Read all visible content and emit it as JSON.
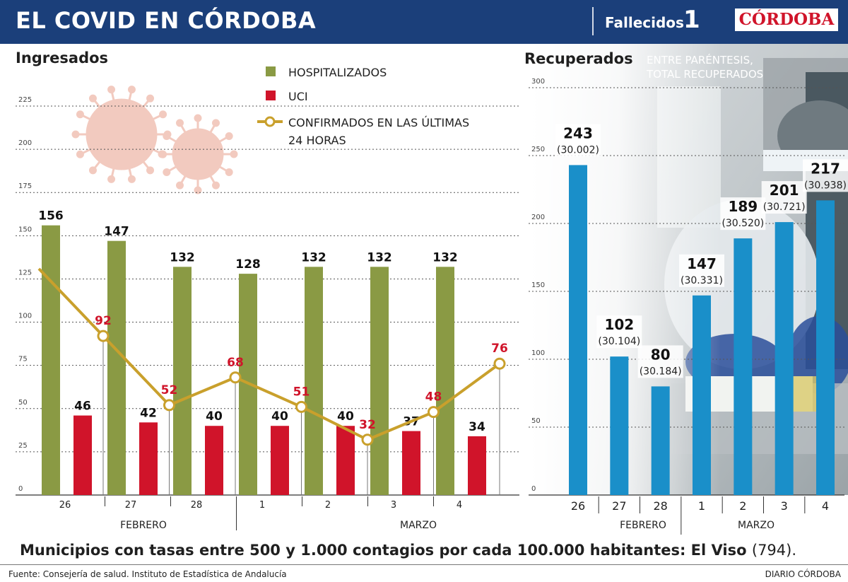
{
  "header": {
    "title": "EL COVID EN CÓRDOBA",
    "fallecidos_label": "Fallecidos",
    "fallecidos_value": "1",
    "logo": "CÓRDOBA"
  },
  "colors": {
    "header_bg": "#1b3f7a",
    "hospitalizados": "#8a9a44",
    "uci": "#d0142a",
    "confirmados": "#c9a02c",
    "recuperados": "#1a8fc9"
  },
  "chart_data": [
    {
      "type": "bar",
      "title": "Ingresados",
      "categories": [
        "26",
        "27",
        "28",
        "1",
        "2",
        "3",
        "4"
      ],
      "groups": [
        {
          "label": "FEBRERO",
          "categories": [
            "26",
            "27",
            "28"
          ]
        },
        {
          "label": "MARZO",
          "categories": [
            "1",
            "2",
            "3",
            "4"
          ]
        }
      ],
      "ylim": [
        0,
        225
      ],
      "yticks": [
        0,
        25,
        50,
        75,
        100,
        125,
        150,
        175,
        200,
        225
      ],
      "grid": true,
      "legend_placement": "top-center",
      "series": [
        {
          "name": "HOSPITALIZADOS",
          "type": "bar",
          "values": [
            156,
            147,
            132,
            128,
            132,
            132,
            132
          ]
        },
        {
          "name": "UCI",
          "type": "bar",
          "values": [
            46,
            42,
            40,
            40,
            40,
            37,
            34
          ]
        },
        {
          "name": "CONFIRMADOS EN LAS ÚLTIMAS 24 HORAS",
          "type": "line",
          "values": [
            92,
            52,
            68,
            51,
            32,
            48,
            76
          ]
        }
      ]
    },
    {
      "type": "bar",
      "title": "Recuperados",
      "subtitle": "ENTRE PARÉNTESIS, TOTAL RECUPERADOS",
      "categories": [
        "26",
        "27",
        "28",
        "1",
        "2",
        "3",
        "4"
      ],
      "groups": [
        {
          "label": "FEBRERO",
          "categories": [
            "26",
            "27",
            "28"
          ]
        },
        {
          "label": "MARZO",
          "categories": [
            "1",
            "2",
            "3",
            "4"
          ]
        }
      ],
      "ylim": [
        0,
        300
      ],
      "yticks": [
        0,
        50,
        100,
        150,
        200,
        250,
        300
      ],
      "grid": true,
      "series": [
        {
          "name": "Recuperados",
          "values": [
            243,
            102,
            80,
            147,
            189,
            201,
            217
          ],
          "totals": [
            "(30.002)",
            "(30.104)",
            "(30.184)",
            "(30.331)",
            "(30.520)",
            "(30.721)",
            "(30.938)"
          ]
        }
      ]
    }
  ],
  "footer": {
    "highlight_text": "Municipios con tasas entre 500 y 1.000 contagios por cada 100.000 habitantes: El Viso",
    "highlight_value": "(794).",
    "source": "Fuente: Consejería de salud. Instituto de Estadística de Andalucía",
    "credit": "DIARIO CÓRDOBA"
  }
}
